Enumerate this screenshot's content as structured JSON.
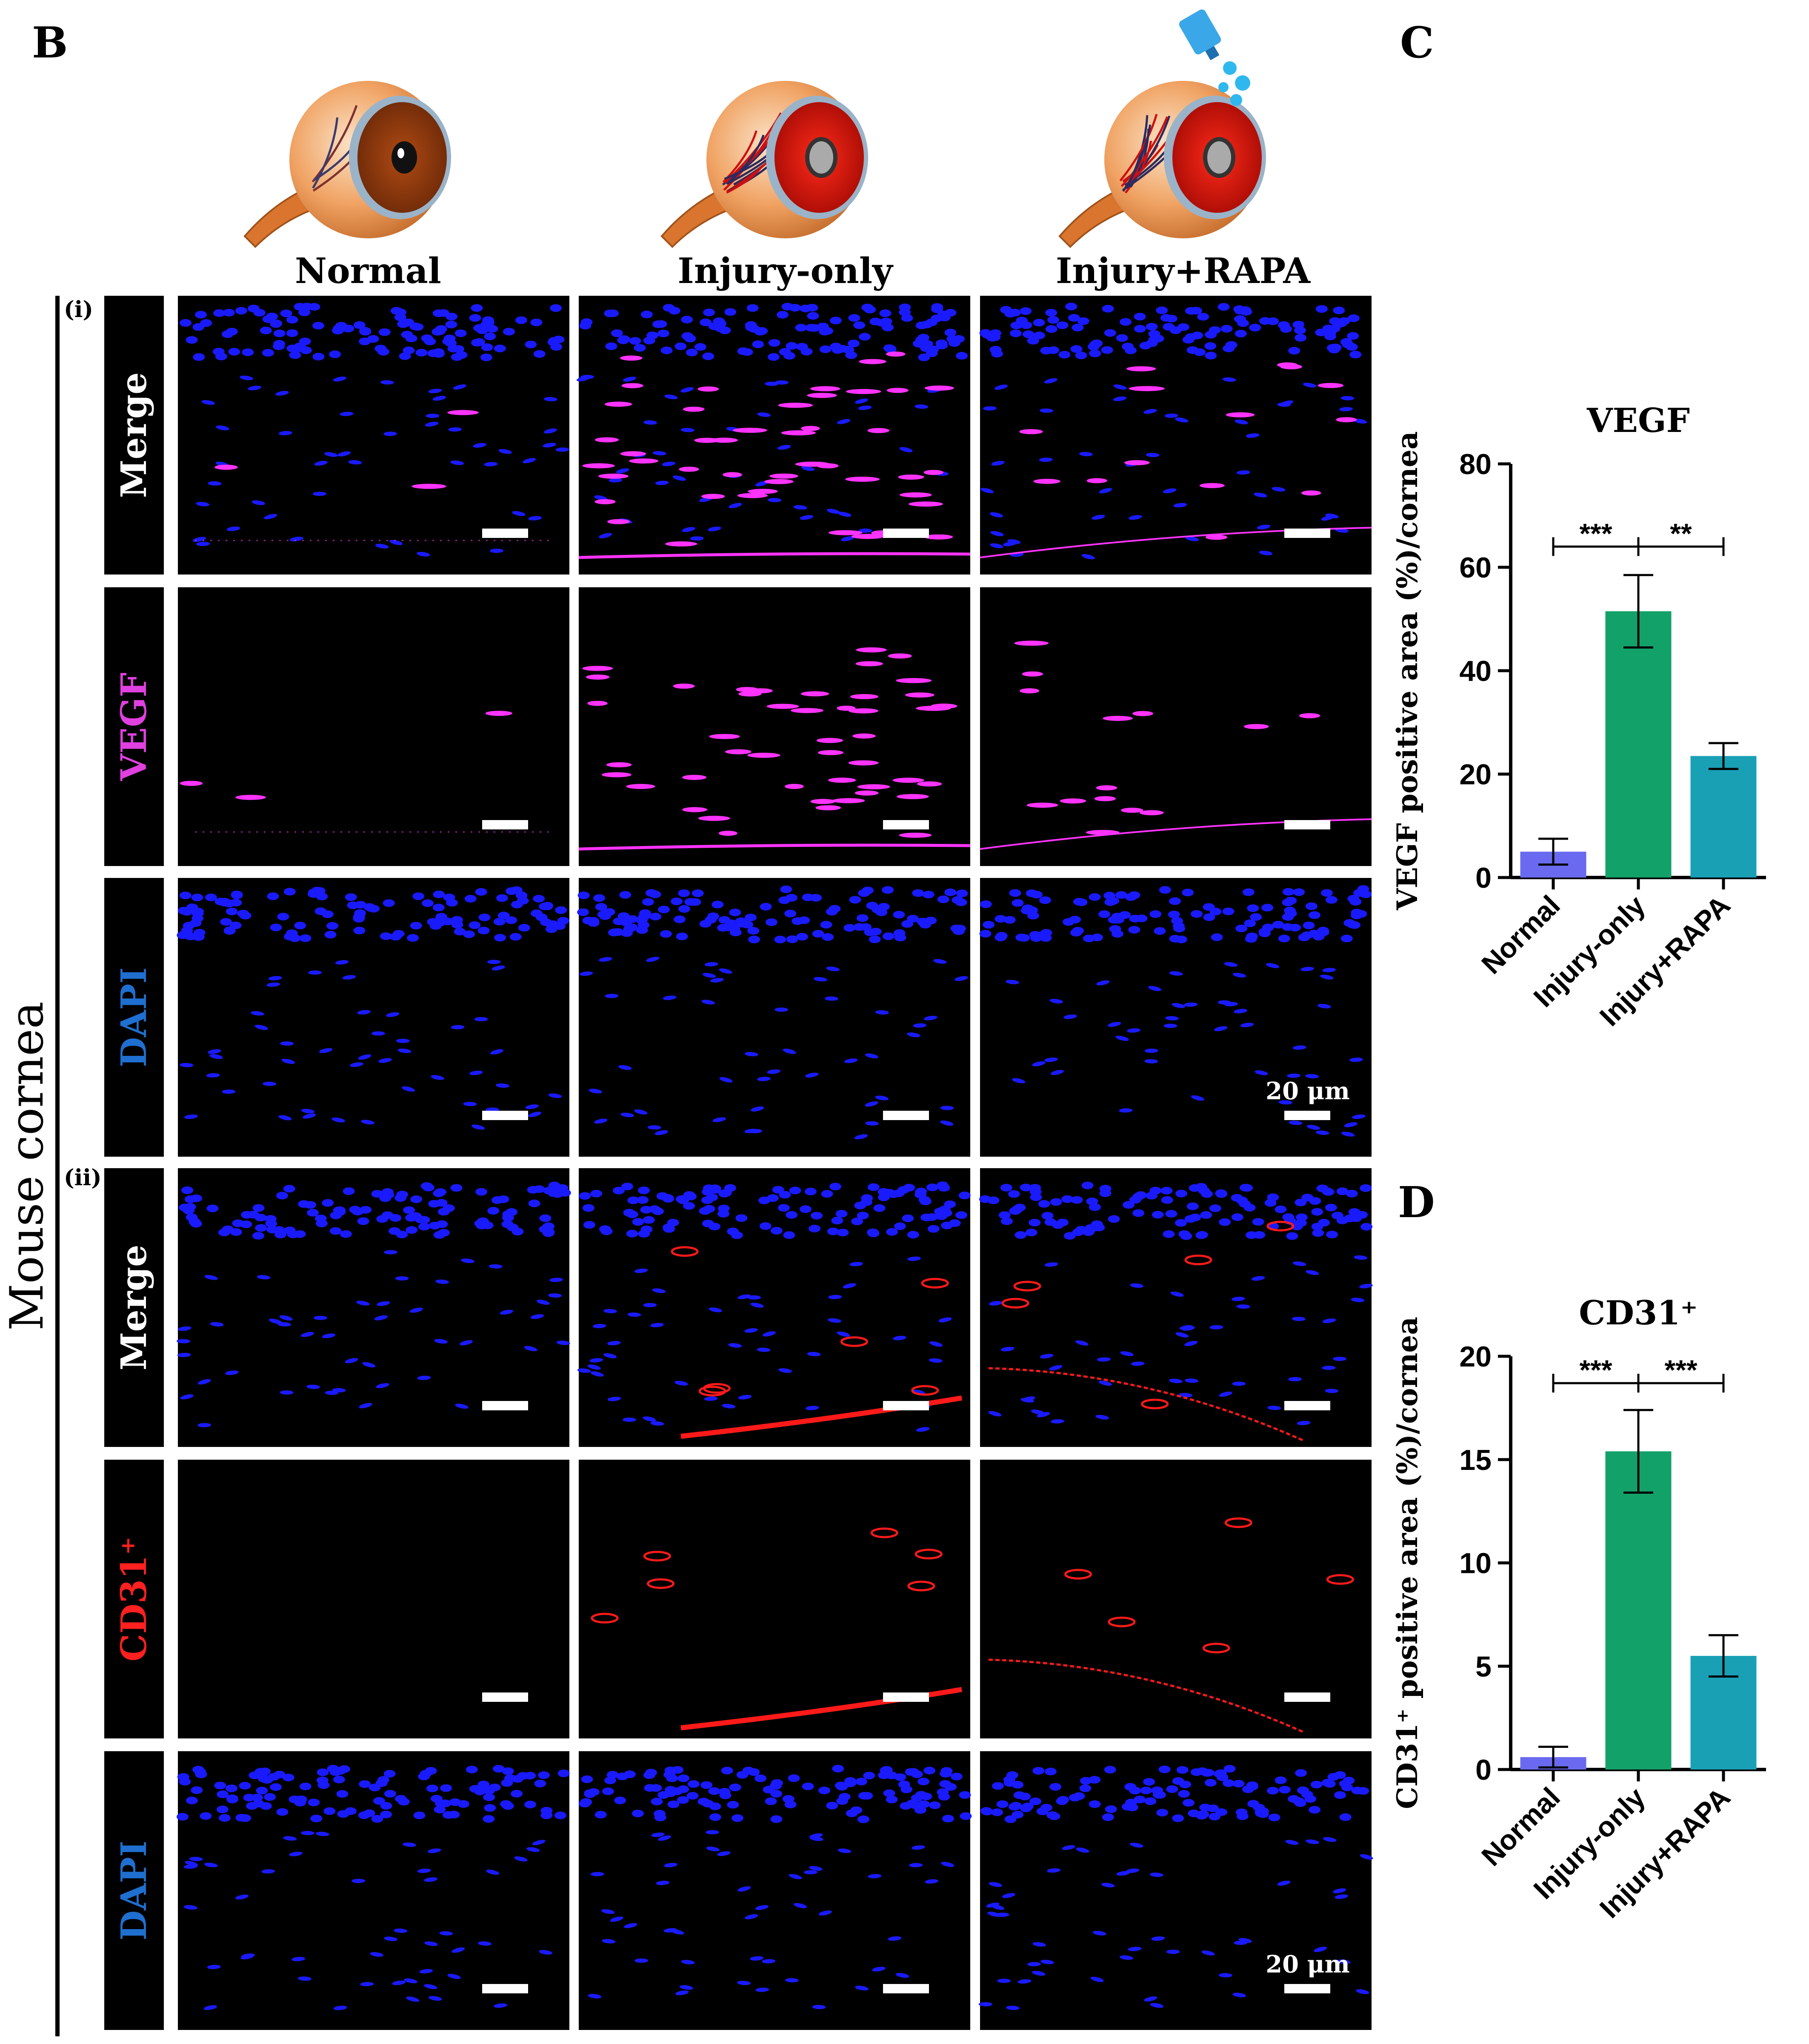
{
  "panel_letters": {
    "b": "B",
    "c": "C",
    "d": "D"
  },
  "groups": [
    "Normal",
    "Injury-only",
    "Injury+RAPA"
  ],
  "section_i": "(i)",
  "section_ii": "(ii)",
  "side_label": "Mouse cornea",
  "row_labels": [
    {
      "text": "Merge",
      "color": "#ffffff"
    },
    {
      "text": "VEGF",
      "color": "#e040e0"
    },
    {
      "text": "DAPI",
      "color": "#1f6fd0"
    },
    {
      "text": "Merge",
      "color": "#ffffff"
    },
    {
      "text": "CD31⁺",
      "color": "#ff2020"
    },
    {
      "text": "DAPI",
      "color": "#1f6fd0"
    }
  ],
  "scale_bar_label": "20 μm",
  "colors": {
    "normal": "#6a6af0",
    "injury_only": "#13a16a",
    "injury_rapa": "#1aa0b5",
    "nuclei": "#1a1aff",
    "vegf": "#ff33ff",
    "cd31": "#ff1a1a"
  },
  "chart_data": [
    {
      "type": "bar",
      "title": "VEGF",
      "ylabel": "VEGF positive area (%)/cornea",
      "categories": [
        "Normal",
        "Injury-only",
        "Injury+RAPA"
      ],
      "values": [
        5,
        51.5,
        23.5
      ],
      "errors": [
        2.5,
        7,
        2.5
      ],
      "ylim": [
        0,
        80
      ],
      "yticks": [
        0,
        20,
        40,
        60,
        80
      ],
      "significance": [
        {
          "from": 0,
          "to": 1,
          "label": "***"
        },
        {
          "from": 1,
          "to": 2,
          "label": "**"
        }
      ],
      "bracket_y": 64
    },
    {
      "type": "bar",
      "title": "CD31⁺",
      "ylabel": "CD31⁺ positive area (%)/cornea",
      "categories": [
        "Normal",
        "Injury-only",
        "Injury+RAPA"
      ],
      "values": [
        0.6,
        15.4,
        5.5
      ],
      "errors": [
        0.5,
        2,
        1
      ],
      "ylim": [
        0,
        20
      ],
      "yticks": [
        0,
        5,
        10,
        15,
        20
      ],
      "significance": [
        {
          "from": 0,
          "to": 1,
          "label": "***"
        },
        {
          "from": 1,
          "to": 2,
          "label": "***"
        }
      ],
      "bracket_y": 18.7
    }
  ]
}
